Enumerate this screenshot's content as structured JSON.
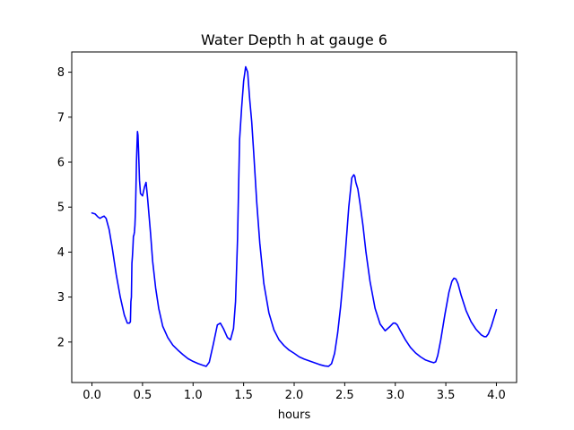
{
  "chart_data": {
    "type": "line",
    "title": "Water Depth h at gauge 6",
    "xlabel": "hours",
    "ylabel": "",
    "xlim": [
      -0.2,
      4.2
    ],
    "ylim": [
      1.1,
      8.45
    ],
    "xticks": [
      0.0,
      0.5,
      1.0,
      1.5,
      2.0,
      2.5,
      3.0,
      3.5,
      4.0
    ],
    "xtick_labels": [
      "0.0",
      "0.5",
      "1.0",
      "1.5",
      "2.0",
      "2.5",
      "3.0",
      "3.5",
      "4.0"
    ],
    "yticks": [
      2,
      3,
      4,
      5,
      6,
      7,
      8
    ],
    "ytick_labels": [
      "2",
      "3",
      "4",
      "5",
      "6",
      "7",
      "8"
    ],
    "grid": false,
    "legend": "none",
    "series": [
      {
        "color": "#0000ff",
        "x": [
          0.0,
          0.03,
          0.06,
          0.08,
          0.1,
          0.12,
          0.14,
          0.17,
          0.2,
          0.24,
          0.28,
          0.32,
          0.35,
          0.37,
          0.38,
          0.385,
          0.39,
          0.395,
          0.4,
          0.405,
          0.41,
          0.415,
          0.42,
          0.425,
          0.43,
          0.435,
          0.44,
          0.445,
          0.45,
          0.455,
          0.46,
          0.47,
          0.48,
          0.5,
          0.52,
          0.535,
          0.55,
          0.58,
          0.6,
          0.63,
          0.66,
          0.7,
          0.75,
          0.8,
          0.85,
          0.9,
          0.95,
          1.0,
          1.05,
          1.1,
          1.13,
          1.16,
          1.2,
          1.24,
          1.27,
          1.3,
          1.34,
          1.37,
          1.4,
          1.42,
          1.44,
          1.46,
          1.48,
          1.5,
          1.52,
          1.54,
          1.56,
          1.58,
          1.6,
          1.63,
          1.66,
          1.7,
          1.75,
          1.8,
          1.85,
          1.9,
          1.95,
          2.0,
          2.05,
          2.1,
          2.15,
          2.2,
          2.25,
          2.3,
          2.34,
          2.37,
          2.4,
          2.43,
          2.46,
          2.5,
          2.54,
          2.57,
          2.59,
          2.6,
          2.61,
          2.63,
          2.65,
          2.68,
          2.71,
          2.75,
          2.8,
          2.85,
          2.9,
          2.95,
          2.98,
          3.0,
          3.02,
          3.05,
          3.1,
          3.15,
          3.2,
          3.25,
          3.3,
          3.35,
          3.38,
          3.4,
          3.42,
          3.45,
          3.49,
          3.53,
          3.56,
          3.58,
          3.6,
          3.62,
          3.65,
          3.7,
          3.75,
          3.8,
          3.85,
          3.88,
          3.9,
          3.92,
          3.95,
          4.0
        ],
        "y": [
          4.87,
          4.85,
          4.78,
          4.75,
          4.78,
          4.8,
          4.75,
          4.5,
          4.1,
          3.5,
          3.0,
          2.6,
          2.42,
          2.42,
          2.45,
          2.9,
          3.0,
          3.75,
          3.9,
          4.1,
          4.35,
          4.38,
          4.45,
          4.6,
          4.9,
          5.4,
          6.0,
          6.35,
          6.68,
          6.6,
          6.3,
          5.6,
          5.3,
          5.25,
          5.45,
          5.55,
          5.2,
          4.4,
          3.8,
          3.2,
          2.75,
          2.35,
          2.1,
          1.93,
          1.82,
          1.72,
          1.63,
          1.57,
          1.52,
          1.48,
          1.46,
          1.55,
          1.95,
          2.38,
          2.42,
          2.3,
          2.1,
          2.05,
          2.3,
          2.9,
          4.3,
          6.5,
          7.2,
          7.8,
          8.12,
          8.0,
          7.4,
          6.9,
          6.2,
          5.1,
          4.2,
          3.3,
          2.65,
          2.27,
          2.05,
          1.92,
          1.82,
          1.75,
          1.67,
          1.62,
          1.58,
          1.54,
          1.5,
          1.47,
          1.46,
          1.52,
          1.75,
          2.2,
          2.8,
          3.8,
          5.0,
          5.65,
          5.72,
          5.68,
          5.55,
          5.4,
          5.1,
          4.6,
          4.0,
          3.35,
          2.75,
          2.4,
          2.25,
          2.35,
          2.42,
          2.42,
          2.38,
          2.25,
          2.05,
          1.88,
          1.76,
          1.67,
          1.6,
          1.56,
          1.54,
          1.56,
          1.7,
          2.05,
          2.6,
          3.1,
          3.35,
          3.42,
          3.4,
          3.3,
          3.05,
          2.7,
          2.45,
          2.28,
          2.16,
          2.12,
          2.12,
          2.18,
          2.35,
          2.72
        ]
      }
    ]
  }
}
